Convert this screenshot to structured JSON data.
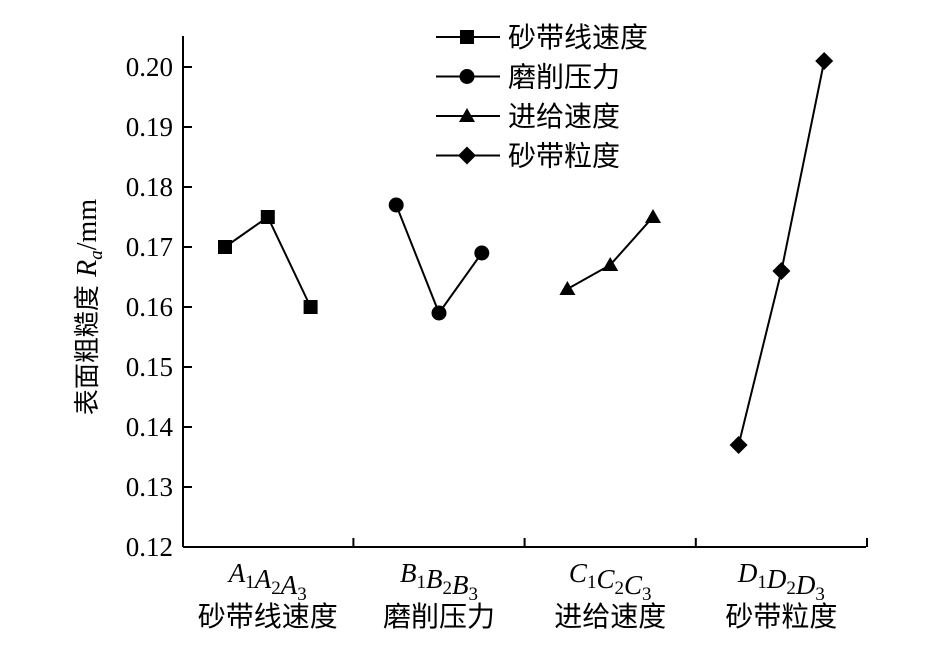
{
  "chart_data": {
    "type": "line",
    "title": "",
    "xlabel": "",
    "ylabel": {
      "prefix": "表面粗糙度 ",
      "symbol": "R",
      "subscript": "a",
      "unit": "/mm"
    },
    "ylim": [
      0.12,
      0.205
    ],
    "yticks": [
      "0.12",
      "0.13",
      "0.14",
      "0.15",
      "0.16",
      "0.17",
      "0.18",
      "0.19",
      "0.20"
    ],
    "grid": false,
    "legend_position": "top-center",
    "factors": [
      {
        "name": "砂带线速度",
        "levels": [
          {
            "letter": "A",
            "sub": "1"
          },
          {
            "letter": "A",
            "sub": "2"
          },
          {
            "letter": "A",
            "sub": "3"
          }
        ],
        "marker": "square",
        "x": [
          1,
          2,
          3
        ],
        "values": [
          0.17,
          0.175,
          0.16
        ]
      },
      {
        "name": "磨削压力",
        "levels": [
          {
            "letter": "B",
            "sub": "1"
          },
          {
            "letter": "B",
            "sub": "2"
          },
          {
            "letter": "B",
            "sub": "3"
          }
        ],
        "marker": "circle",
        "x": [
          5,
          6,
          7
        ],
        "values": [
          0.177,
          0.159,
          0.169
        ]
      },
      {
        "name": "进给速度",
        "levels": [
          {
            "letter": "C",
            "sub": "1"
          },
          {
            "letter": "C",
            "sub": "2"
          },
          {
            "letter": "C",
            "sub": "3"
          }
        ],
        "marker": "triangle",
        "x": [
          9,
          10,
          11
        ],
        "values": [
          0.163,
          0.167,
          0.175
        ]
      },
      {
        "name": "砂带粒度",
        "levels": [
          {
            "letter": "D",
            "sub": "1"
          },
          {
            "letter": "D",
            "sub": "2"
          },
          {
            "letter": "D",
            "sub": "3"
          }
        ],
        "marker": "diamond",
        "x": [
          13,
          14,
          15
        ],
        "values": [
          0.137,
          0.166,
          0.201
        ]
      }
    ]
  }
}
